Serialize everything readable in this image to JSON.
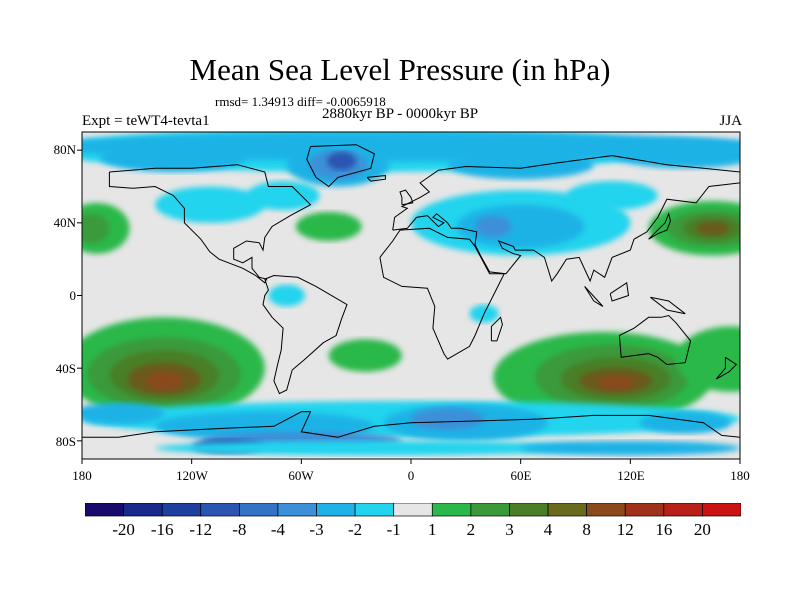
{
  "title": "Mean Sea Level Pressure (in hPa)",
  "stats_line": "rmsd= 1.34913 diff= -0.0065918",
  "period": "2880kyr BP - 0000kyr BP",
  "experiment": "Expt = teWT4-tevta1",
  "season": "JJA",
  "map": {
    "projection": "cylindrical equidistant",
    "lon_range": [
      -180,
      180
    ],
    "lat_range": [
      -90,
      90
    ],
    "lat_labels": [
      "80N",
      "40N",
      "0",
      "40S",
      "80S"
    ],
    "lon_labels": [
      "180",
      "120W",
      "60W",
      "0",
      "60E",
      "120E",
      "180"
    ],
    "field_features": [
      {
        "region": "South Pacific high anomaly",
        "lon": -130,
        "lat": -45,
        "max_value": 8
      },
      {
        "region": "South Indian Ocean high anomaly",
        "lon": 110,
        "lat": -45,
        "max_value": 8
      },
      {
        "region": "North Pacific high anomaly (west)",
        "lon": 165,
        "lat": 37,
        "max_value": 4
      },
      {
        "region": "North Pacific high anomaly (east)",
        "lon": -170,
        "lat": 37,
        "max_value": 4
      },
      {
        "region": "North Atlantic high anomaly",
        "lon": -45,
        "lat": 38,
        "max_value": 2
      },
      {
        "region": "South Atlantic high anomaly",
        "lon": -25,
        "lat": -33,
        "max_value": 2
      },
      {
        "region": "Greenland low anomaly",
        "lon": -40,
        "lat": 72,
        "min_value": -8
      },
      {
        "region": "Arctic low anomaly",
        "lon": 0,
        "lat": 80,
        "min_value": -3
      },
      {
        "region": "Asian monsoon low anomaly",
        "lon": 60,
        "lat": 38,
        "min_value": -2
      },
      {
        "region": "Antarctic low anomaly",
        "lon": -60,
        "lat": -75,
        "min_value": -8
      },
      {
        "region": "Equatorial Pacific low anomaly",
        "lon": -65,
        "lat": 0,
        "min_value": -2
      }
    ]
  },
  "colorbar": {
    "labels": [
      "-20",
      "-16",
      "-12",
      "-8",
      "-4",
      "-3",
      "-2",
      "-1",
      "1",
      "2",
      "3",
      "4",
      "8",
      "12",
      "16",
      "20"
    ],
    "colors": [
      "#1a0a6e",
      "#1a2a8c",
      "#1f3f9e",
      "#2a55b0",
      "#3273c6",
      "#3c90d8",
      "#1fb2e6",
      "#22d4ee",
      "#e6e6e6",
      "#2bb84a",
      "#3a9a3a",
      "#4a7f28",
      "#6a6a1c",
      "#8a4a1c",
      "#a0321c",
      "#b8201a",
      "#cc1212"
    ]
  }
}
